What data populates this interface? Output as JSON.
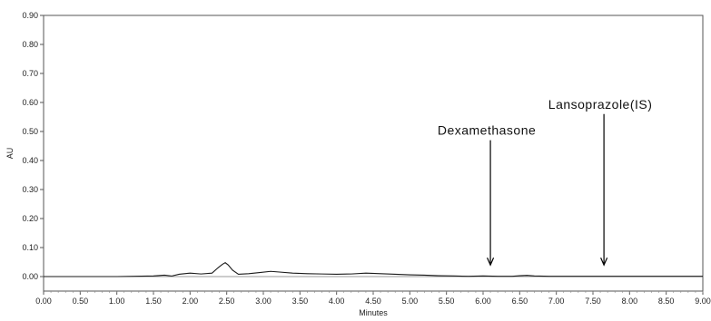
{
  "chart_data": {
    "type": "line",
    "title": "",
    "xlabel": "Minutes",
    "ylabel": "AU",
    "xlim": [
      0,
      9
    ],
    "ylim": [
      -0.05,
      0.9
    ],
    "grid": false,
    "x_ticks": [
      0,
      0.5,
      1,
      1.5,
      2,
      2.5,
      3,
      3.5,
      4,
      4.5,
      5,
      5.5,
      6,
      6.5,
      7,
      7.5,
      8,
      8.5,
      9
    ],
    "x_tick_labels": [
      "0.00",
      "0.50",
      "1.00",
      "1.50",
      "2.00",
      "2.50",
      "3.00",
      "3.50",
      "4.00",
      "4.50",
      "5.00",
      "5.50",
      "6.00",
      "6.50",
      "7.00",
      "7.50",
      "8.00",
      "8.50",
      "9.00"
    ],
    "y_ticks": [
      0,
      0.1,
      0.2,
      0.3,
      0.4,
      0.5,
      0.6,
      0.7,
      0.8,
      0.9
    ],
    "y_tick_labels": [
      "0.00",
      "0.10",
      "0.20",
      "0.30",
      "0.40",
      "0.50",
      "0.60",
      "0.70",
      "0.80",
      "0.90"
    ],
    "series": [
      {
        "color": "#1a1a1a",
        "x": [
          0,
          1.0,
          1.5,
          1.65,
          1.75,
          1.85,
          2.0,
          2.15,
          2.3,
          2.38,
          2.44,
          2.48,
          2.52,
          2.58,
          2.66,
          2.8,
          2.95,
          3.1,
          3.2,
          3.4,
          3.6,
          3.8,
          4.0,
          4.2,
          4.4,
          4.6,
          4.8,
          5.0,
          5.2,
          5.4,
          5.6,
          5.8,
          6.0,
          6.2,
          6.4,
          6.5,
          6.6,
          6.7,
          6.9,
          7.2,
          7.6,
          8.0,
          8.5,
          9.0
        ],
        "y": [
          0,
          0,
          0.002,
          0.005,
          0.002,
          0.008,
          0.012,
          0.009,
          0.012,
          0.03,
          0.042,
          0.048,
          0.04,
          0.022,
          0.008,
          0.01,
          0.014,
          0.018,
          0.016,
          0.012,
          0.01,
          0.009,
          0.008,
          0.009,
          0.012,
          0.01,
          0.008,
          0.006,
          0.005,
          0.003,
          0.002,
          0.001,
          0.002,
          0.001,
          0.001,
          0.003,
          0.004,
          0.002,
          0.001,
          0.001,
          0.001,
          0.001,
          0.001,
          0.001
        ]
      }
    ],
    "annotations": [
      {
        "text": "Dexamethasone",
        "x": 6.1,
        "arrow_from_y": 0.47,
        "arrow_to_y": 0.04
      },
      {
        "text": "Lansoprazole(IS)",
        "x": 7.65,
        "arrow_from_y": 0.56,
        "arrow_to_y": 0.04
      }
    ]
  }
}
